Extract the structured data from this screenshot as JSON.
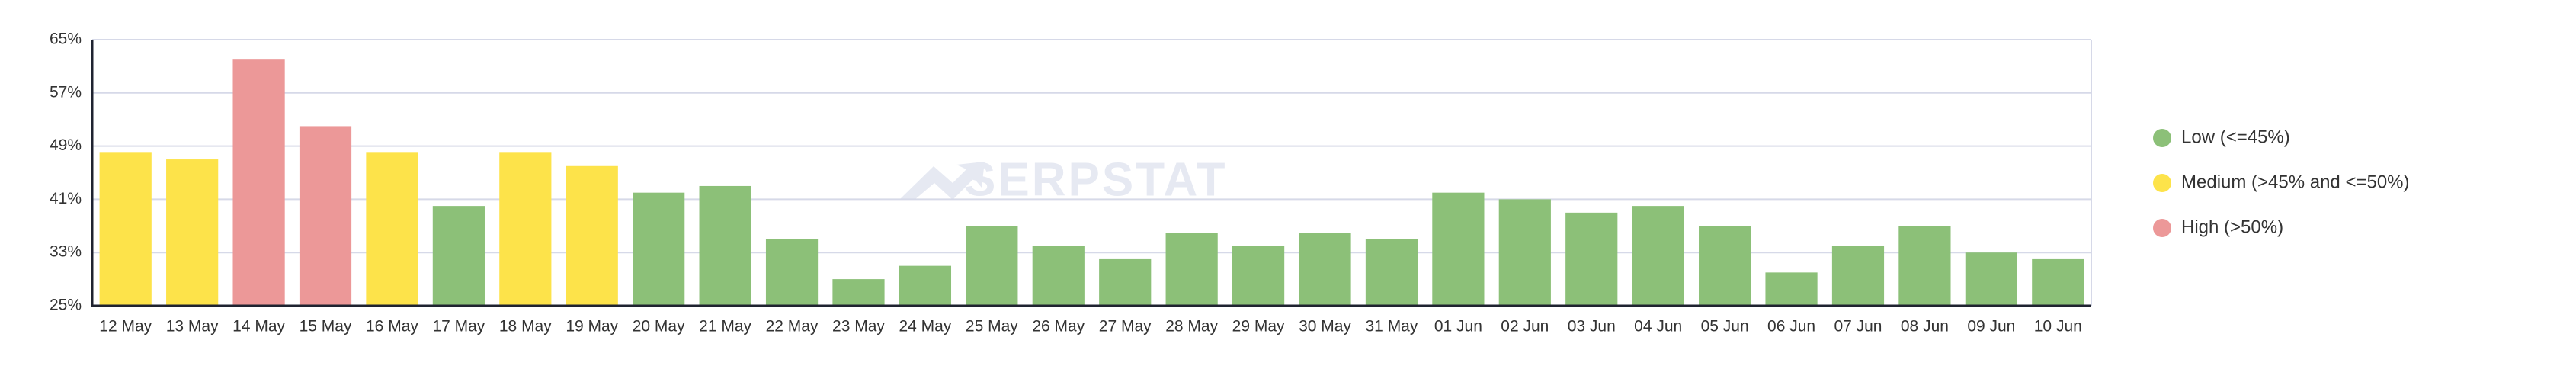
{
  "chart_data": {
    "type": "bar",
    "categories": [
      "12 May",
      "13 May",
      "14 May",
      "15 May",
      "16 May",
      "17 May",
      "18 May",
      "19 May",
      "20 May",
      "21 May",
      "22 May",
      "23 May",
      "24 May",
      "25 May",
      "26 May",
      "27 May",
      "28 May",
      "29 May",
      "30 May",
      "31 May",
      "01 Jun",
      "02 Jun",
      "03 Jun",
      "04 Jun",
      "05 Jun",
      "06 Jun",
      "07 Jun",
      "08 Jun",
      "09 Jun",
      "10 Jun"
    ],
    "series": [
      {
        "name": "Low (<=45%)",
        "color": "#8cc078",
        "values": [
          null,
          null,
          null,
          null,
          null,
          40,
          null,
          null,
          42,
          43,
          35,
          29,
          31,
          37,
          34,
          32,
          36,
          34,
          36,
          35,
          42,
          41,
          39,
          40,
          37,
          30,
          34,
          37,
          33,
          32
        ]
      },
      {
        "name": "Medium (>45% and <=50%)",
        "color": "#fde34a",
        "values": [
          48,
          47,
          null,
          null,
          48,
          null,
          48,
          46,
          null,
          null,
          null,
          null,
          null,
          null,
          null,
          null,
          null,
          null,
          null,
          null,
          null,
          null,
          null,
          null,
          null,
          null,
          null,
          null,
          null,
          null
        ]
      },
      {
        "name": "High (>50%)",
        "color": "#ec9898",
        "values": [
          null,
          null,
          62,
          52,
          null,
          null,
          null,
          null,
          null,
          null,
          null,
          null,
          null,
          null,
          null,
          null,
          null,
          null,
          null,
          null,
          null,
          null,
          null,
          null,
          null,
          null,
          null,
          null,
          null,
          null
        ]
      }
    ],
    "ylim": [
      25,
      65
    ],
    "yticks": [
      {
        "value": 25,
        "label": "25%"
      },
      {
        "value": 33,
        "label": "33%"
      },
      {
        "value": 41,
        "label": "41%"
      },
      {
        "value": 49,
        "label": "49%"
      },
      {
        "value": 57,
        "label": "57%"
      },
      {
        "value": 65,
        "label": "65%"
      }
    ],
    "grid": true,
    "legend": "right",
    "watermark": "SERPSTAT"
  }
}
